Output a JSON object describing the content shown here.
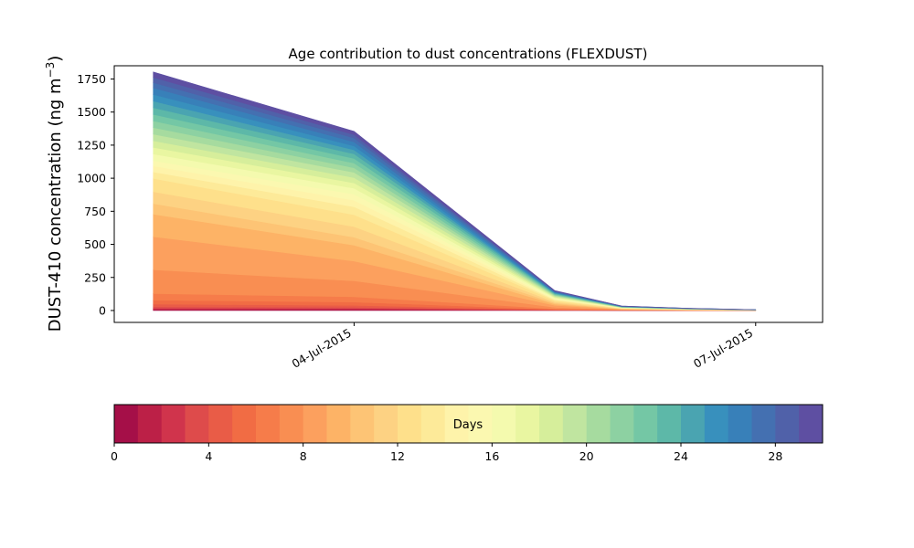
{
  "chart_data": {
    "type": "area",
    "stacked": true,
    "title": "Age contribution to dust concentrations (FLEXDUST)",
    "ylabel_main": "DUST-410 concentration (ng m",
    "ylabel_sup": "−3",
    "ylabel_close": ")",
    "ylim": [
      -90,
      1850
    ],
    "yticks": [
      0,
      250,
      500,
      750,
      1000,
      1250,
      1500,
      1750
    ],
    "xlim": [
      "2015-07-02T05:00",
      "2015-07-07T12:00"
    ],
    "xticks": [
      {
        "date": "2015-07-04",
        "label": "04-Jul-2015"
      },
      {
        "date": "2015-07-07",
        "label": "07-Jul-2015"
      }
    ],
    "x": [
      "2015-07-02T12:00",
      "2015-07-04T00:00",
      "2015-07-05T12:00",
      "2015-07-06T00:00",
      "2015-07-06T12:00",
      "2015-07-07T00:00"
    ],
    "layer_values": [
      [
        5,
        5,
        1,
        0.5,
        0.2,
        0.1
      ],
      [
        5,
        5,
        1,
        0.5,
        0.2,
        0.1
      ],
      [
        8,
        6,
        1,
        0.5,
        0.2,
        0.1
      ],
      [
        10,
        8,
        1,
        0.5,
        0.2,
        0.1
      ],
      [
        20,
        15,
        2,
        0.5,
        0.2,
        0.1
      ],
      [
        30,
        25,
        3,
        1,
        0.3,
        0.1
      ],
      [
        50,
        40,
        5,
        1,
        0.5,
        0.2
      ],
      [
        180,
        120,
        10,
        2,
        1,
        0.3
      ],
      [
        250,
        150,
        15,
        2,
        1,
        0.3
      ],
      [
        170,
        120,
        10,
        2,
        1,
        0.3
      ],
      [
        80,
        60,
        8,
        2,
        1,
        0.3
      ],
      [
        90,
        80,
        8,
        2,
        1,
        0.3
      ],
      [
        100,
        90,
        10,
        2,
        1,
        0.3
      ],
      [
        50,
        60,
        6,
        2,
        1,
        0.3
      ],
      [
        45,
        50,
        5,
        1,
        0.5,
        0.2
      ],
      [
        40,
        45,
        5,
        1,
        0.5,
        0.2
      ],
      [
        50,
        45,
        5,
        1,
        0.5,
        0.2
      ],
      [
        50,
        40,
        5,
        1,
        0.5,
        0.2
      ],
      [
        50,
        40,
        5,
        1,
        0.5,
        0.2
      ],
      [
        50,
        40,
        5,
        1,
        0.5,
        0.2
      ],
      [
        50,
        35,
        5,
        1,
        0.5,
        0.2
      ],
      [
        50,
        35,
        4,
        1,
        0.5,
        0.2
      ],
      [
        50,
        35,
        4,
        1,
        0.5,
        0.2
      ],
      [
        50,
        35,
        4,
        1,
        0.5,
        0.2
      ],
      [
        50,
        30,
        4,
        1,
        0.5,
        0.2
      ],
      [
        50,
        30,
        4,
        1,
        0.5,
        0.2
      ],
      [
        50,
        30,
        4,
        1,
        0.5,
        0.2
      ],
      [
        40,
        30,
        4,
        1,
        0.5,
        0.2
      ],
      [
        40,
        25,
        3,
        1,
        0.5,
        0.2
      ],
      [
        40,
        25,
        3,
        1,
        0.5,
        0.2
      ]
    ],
    "colorbar": {
      "label": "Days",
      "range": [
        0,
        30
      ],
      "ticks": [
        0,
        4,
        8,
        12,
        16,
        20,
        24,
        28
      ],
      "colors": [
        "#a50f48",
        "#bc2047",
        "#d0344c",
        "#de4b4b",
        "#e95c47",
        "#f16c44",
        "#f67c4a",
        "#f98e52",
        "#fca05e",
        "#fdb366",
        "#fdc475",
        "#fdd283",
        "#fee08b",
        "#fdea99",
        "#fef3aa",
        "#fbf8b0",
        "#f4faae",
        "#e9f6a1",
        "#d6ee9b",
        "#c0e5a0",
        "#a6db9f",
        "#8dd1a2",
        "#74c7a5",
        "#5db8a8",
        "#4aa4b1",
        "#3890bd",
        "#3880b9",
        "#4470b1",
        "#5061a9",
        "#5e4fa2"
      ]
    }
  }
}
